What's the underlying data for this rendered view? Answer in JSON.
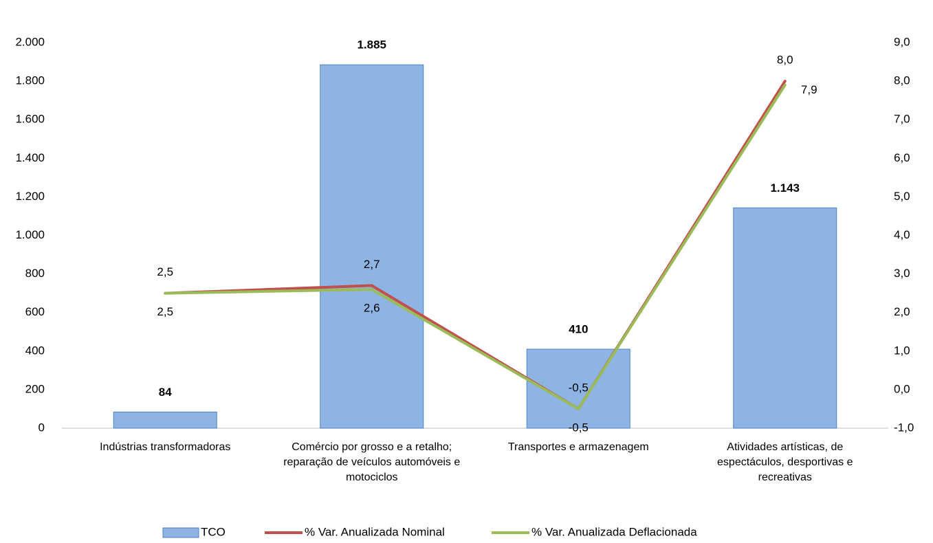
{
  "chart_data": {
    "type": "bar",
    "categories": [
      "Indústrias transformadoras",
      "Comércio por grosso e a retalho; reparação de veículos automóveis e motociclos",
      "Transportes e armazenagem",
      "Atividades artísticas, de espectáculos, desportivas e recreativas"
    ],
    "series": [
      {
        "name": "TCO",
        "type": "bar",
        "color": "#8eb4e3",
        "values": [
          84,
          1885,
          410,
          1143
        ],
        "value_labels": [
          "84",
          "1.885",
          "410",
          "1.143"
        ]
      },
      {
        "name": "% Var. Anualizada Nominal",
        "type": "line",
        "axis": "y2",
        "color": "#c0504d",
        "values": [
          2.5,
          2.7,
          -0.5,
          8.0
        ],
        "value_labels": [
          "2,5",
          "2,7",
          "-0,5",
          "8,0"
        ]
      },
      {
        "name": "% Var. Anualizada Deflacionada",
        "type": "line",
        "axis": "y2",
        "color": "#9bbb59",
        "values": [
          2.5,
          2.6,
          -0.5,
          7.9
        ],
        "value_labels": [
          "2,5",
          "2,6",
          "-0,5",
          "7,9"
        ]
      }
    ],
    "ylim": [
      0,
      2000
    ],
    "yticks": [
      0,
      200,
      400,
      600,
      800,
      {
        "value": 1000,
        "label": "1.000"
      },
      {
        "value": 1200,
        "label": "1.200"
      },
      {
        "value": 1400,
        "label": "1.400"
      },
      {
        "value": 1600,
        "label": "1.600"
      },
      {
        "value": 1800,
        "label": "1.800"
      },
      {
        "value": 2000,
        "label": "2.000"
      }
    ],
    "y2lim": [
      -1,
      9
    ],
    "y2ticks": [
      {
        "value": -1,
        "label": "-1,0"
      },
      {
        "value": 0,
        "label": "0,0"
      },
      {
        "value": 1,
        "label": "1,0"
      },
      {
        "value": 2,
        "label": "2,0"
      },
      {
        "value": 3,
        "label": "3,0"
      },
      {
        "value": 4,
        "label": "4,0"
      },
      {
        "value": 5,
        "label": "5,0"
      },
      {
        "value": 6,
        "label": "6,0"
      },
      {
        "value": 7,
        "label": "7,0"
      },
      {
        "value": 8,
        "label": "8,0"
      },
      {
        "value": 9,
        "label": "9,0"
      }
    ],
    "grid": false
  }
}
